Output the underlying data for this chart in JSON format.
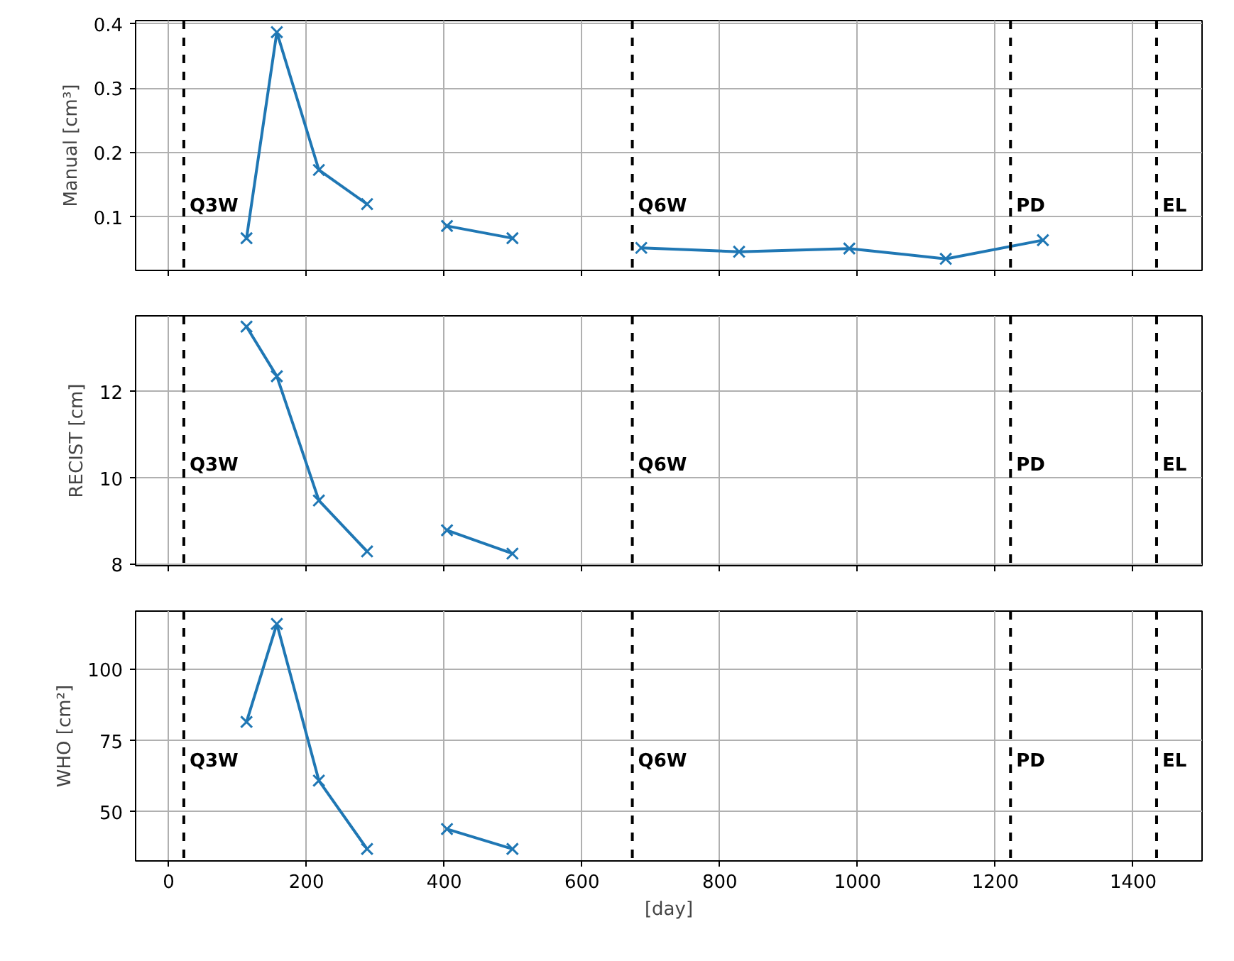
{
  "chart_data": [
    {
      "type": "line",
      "ylabel": "Manual [cm³]",
      "x": [
        113,
        157,
        218,
        288,
        346,
        404,
        499,
        592,
        686,
        828,
        988,
        1128,
        1269
      ],
      "tick_labels": "y",
      "series": [
        {
          "color": "#1f77b4",
          "values": [
            0.067,
            0.387,
            0.173,
            0.12,
            null,
            0.086,
            0.067,
            null,
            0.052,
            0.046,
            0.051,
            0.035,
            0.064
          ]
        }
      ],
      "xlim": [
        -48,
        1500
      ],
      "xticks": [
        0,
        200,
        400,
        600,
        800,
        1000,
        1200,
        1400
      ],
      "ylim": [
        0.017,
        0.405
      ],
      "yticks": [
        0.1,
        0.2,
        0.3,
        0.4
      ],
      "grid": true,
      "marker": "cross",
      "line_style": "solid",
      "ref_lines": [
        {
          "axis": "x",
          "value": 22,
          "color": "#000000",
          "line_style": "dashed"
        },
        {
          "axis": "x",
          "value": 673,
          "color": "#000000",
          "line_style": "dashed"
        },
        {
          "axis": "x",
          "value": 1222,
          "color": "#000000",
          "line_style": "dashed"
        },
        {
          "axis": "x",
          "value": 1434,
          "color": "#000000",
          "line_style": "dashed"
        }
      ],
      "annotations": [
        {
          "text": "Q3W",
          "x": 22,
          "y": 0.1
        },
        {
          "text": "Q6W",
          "x": 673,
          "y": 0.1
        },
        {
          "text": "PD",
          "x": 1222,
          "y": 0.1
        },
        {
          "text": "EL",
          "x": 1434,
          "y": 0.1
        }
      ]
    },
    {
      "type": "line",
      "ylabel": "RECIST [cm]",
      "x": [
        113,
        157,
        218,
        288,
        346,
        404,
        499
      ],
      "tick_labels": "y",
      "series": [
        {
          "color": "#1f77b4",
          "values": [
            13.51,
            12.36,
            9.48,
            8.3,
            null,
            8.79,
            8.25
          ]
        }
      ],
      "xlim": [
        -48,
        1500
      ],
      "xticks": [
        0,
        200,
        400,
        600,
        800,
        1000,
        1200,
        1400
      ],
      "ylim": [
        7.97,
        13.76
      ],
      "yticks": [
        8,
        10,
        12
      ],
      "grid": true,
      "marker": "cross",
      "line_style": "solid",
      "ref_lines": [
        {
          "axis": "x",
          "value": 22,
          "color": "#000000",
          "line_style": "dashed"
        },
        {
          "axis": "x",
          "value": 673,
          "color": "#000000",
          "line_style": "dashed"
        },
        {
          "axis": "x",
          "value": 1222,
          "color": "#000000",
          "line_style": "dashed"
        },
        {
          "axis": "x",
          "value": 1434,
          "color": "#000000",
          "line_style": "dashed"
        }
      ],
      "annotations": [
        {
          "text": "Q3W",
          "x": 22,
          "y": 10.05
        },
        {
          "text": "Q6W",
          "x": 673,
          "y": 10.05
        },
        {
          "text": "PD",
          "x": 1222,
          "y": 10.05
        },
        {
          "text": "EL",
          "x": 1434,
          "y": 10.05
        }
      ]
    },
    {
      "type": "line",
      "ylabel": "WHO [cm²]",
      "xlabel": "[day]",
      "x": [
        113,
        157,
        218,
        288,
        346,
        404,
        499
      ],
      "series": [
        {
          "color": "#1f77b4",
          "values": [
            81.6,
            116,
            61,
            37,
            null,
            44,
            37
          ]
        }
      ],
      "xlim": [
        -48,
        1500
      ],
      "xticks": [
        0,
        200,
        400,
        600,
        800,
        1000,
        1200,
        1400
      ],
      "ylim": [
        32.8,
        120.5
      ],
      "yticks": [
        50,
        75,
        100
      ],
      "grid": true,
      "marker": "cross",
      "line_style": "solid",
      "ref_lines": [
        {
          "axis": "x",
          "value": 22,
          "color": "#000000",
          "line_style": "dashed"
        },
        {
          "axis": "x",
          "value": 673,
          "color": "#000000",
          "line_style": "dashed"
        },
        {
          "axis": "x",
          "value": 1222,
          "color": "#000000",
          "line_style": "dashed"
        },
        {
          "axis": "x",
          "value": 1434,
          "color": "#000000",
          "line_style": "dashed"
        }
      ],
      "annotations": [
        {
          "text": "Q3W",
          "x": 22,
          "y": 64
        },
        {
          "text": "Q6W",
          "x": 673,
          "y": 64
        },
        {
          "text": "PD",
          "x": 1222,
          "y": 64
        },
        {
          "text": "EL",
          "x": 1434,
          "y": 64
        }
      ]
    }
  ]
}
